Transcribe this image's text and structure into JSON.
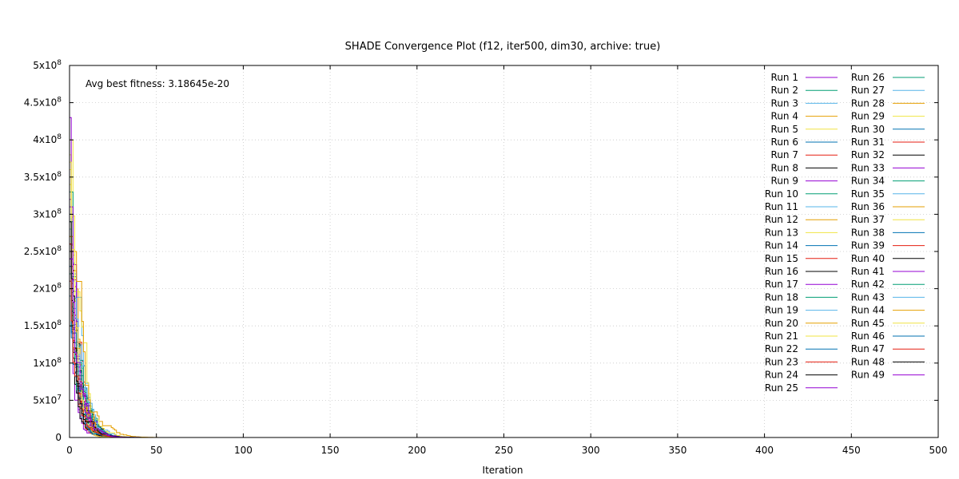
{
  "chart_data": {
    "type": "line",
    "title": "SHADE Convergence Plot (f12, iter500, dim30, archive: true)",
    "xlabel": "Iteration",
    "ylabel": "",
    "annotation": "Avg best fitness: 3.18645e-20",
    "xlim": [
      0,
      500
    ],
    "ylim": [
      0,
      500000000
    ],
    "x_ticks": [
      "0",
      "50",
      "100",
      "150",
      "200",
      "250",
      "300",
      "350",
      "400",
      "450",
      "500"
    ],
    "x_tick_values": [
      0,
      50,
      100,
      150,
      200,
      250,
      300,
      350,
      400,
      450,
      500
    ],
    "y_ticks": [
      {
        "mantissa": "0",
        "exp": ""
      },
      {
        "mantissa": "5x10",
        "exp": "7"
      },
      {
        "mantissa": "1x10",
        "exp": "8"
      },
      {
        "mantissa": "1.5x10",
        "exp": "8"
      },
      {
        "mantissa": "2x10",
        "exp": "8"
      },
      {
        "mantissa": "2.5x10",
        "exp": "8"
      },
      {
        "mantissa": "3x10",
        "exp": "8"
      },
      {
        "mantissa": "3.5x10",
        "exp": "8"
      },
      {
        "mantissa": "4x10",
        "exp": "8"
      },
      {
        "mantissa": "4.5x10",
        "exp": "8"
      },
      {
        "mantissa": "5x10",
        "exp": "8"
      }
    ],
    "y_tick_values": [
      0,
      50000000,
      100000000,
      150000000,
      200000000,
      250000000,
      300000000,
      350000000,
      400000000,
      450000000,
      500000000
    ],
    "grid": true,
    "legend_position": "top-right",
    "palette": [
      "#9400d3",
      "#009e73",
      "#56b4e9",
      "#e69f00",
      "#f0e442",
      "#0072b2",
      "#e51e10",
      "#000000"
    ],
    "series": [
      {
        "name": "Run 1",
        "initial": 320000000,
        "decay": 0.3
      },
      {
        "name": "Run 2",
        "initial": 260000000,
        "decay": 0.28
      },
      {
        "name": "Run 3",
        "initial": 300000000,
        "decay": 0.32
      },
      {
        "name": "Run 4",
        "initial": 280000000,
        "decay": 0.27
      },
      {
        "name": "Run 5",
        "initial": 400000000,
        "decay": 0.35
      },
      {
        "name": "Run 6",
        "initial": 240000000,
        "decay": 0.29
      },
      {
        "name": "Run 7",
        "initial": 250000000,
        "decay": 0.31
      },
      {
        "name": "Run 8",
        "initial": 220000000,
        "decay": 0.26
      },
      {
        "name": "Run 9",
        "initial": 230000000,
        "decay": 0.3
      },
      {
        "name": "Run 10",
        "initial": 330000000,
        "decay": 0.33
      },
      {
        "name": "Run 11",
        "initial": 290000000,
        "decay": 0.28
      },
      {
        "name": "Run 12",
        "initial": 270000000,
        "decay": 0.25
      },
      {
        "name": "Run 13",
        "initial": 380000000,
        "decay": 0.34
      },
      {
        "name": "Run 14",
        "initial": 210000000,
        "decay": 0.27
      },
      {
        "name": "Run 15",
        "initial": 200000000,
        "decay": 0.3
      },
      {
        "name": "Run 16",
        "initial": 260000000,
        "decay": 0.29
      },
      {
        "name": "Run 17",
        "initial": 240000000,
        "decay": 0.31
      },
      {
        "name": "Run 18",
        "initial": 280000000,
        "decay": 0.26
      },
      {
        "name": "Run 19",
        "initial": 310000000,
        "decay": 0.32
      },
      {
        "name": "Run 20",
        "initial": 250000000,
        "decay": 0.24
      },
      {
        "name": "Run 21",
        "initial": 350000000,
        "decay": 0.3
      },
      {
        "name": "Run 22",
        "initial": 190000000,
        "decay": 0.28
      },
      {
        "name": "Run 23",
        "initial": 230000000,
        "decay": 0.33
      },
      {
        "name": "Run 24",
        "initial": 270000000,
        "decay": 0.27
      },
      {
        "name": "Run 25",
        "initial": 430000000,
        "decay": 0.36
      },
      {
        "name": "Run 26",
        "initial": 300000000,
        "decay": 0.29
      },
      {
        "name": "Run 27",
        "initial": 220000000,
        "decay": 0.26
      },
      {
        "name": "Run 28",
        "initial": 260000000,
        "decay": 0.31
      },
      {
        "name": "Run 29",
        "initial": 340000000,
        "decay": 0.28
      },
      {
        "name": "Run 30",
        "initial": 240000000,
        "decay": 0.3
      },
      {
        "name": "Run 31",
        "initial": 210000000,
        "decay": 0.25
      },
      {
        "name": "Run 32",
        "initial": 280000000,
        "decay": 0.32
      },
      {
        "name": "Run 33",
        "initial": 250000000,
        "decay": 0.27
      },
      {
        "name": "Run 34",
        "initial": 290000000,
        "decay": 0.29
      },
      {
        "name": "Run 35",
        "initial": 230000000,
        "decay": 0.33
      },
      {
        "name": "Run 36",
        "initial": 270000000,
        "decay": 0.26
      },
      {
        "name": "Run 37",
        "initial": 360000000,
        "decay": 0.31
      },
      {
        "name": "Run 38",
        "initial": 200000000,
        "decay": 0.28
      },
      {
        "name": "Run 39",
        "initial": 260000000,
        "decay": 0.3
      },
      {
        "name": "Run 40",
        "initial": 240000000,
        "decay": 0.27
      },
      {
        "name": "Run 41",
        "initial": 310000000,
        "decay": 0.32
      },
      {
        "name": "Run 42",
        "initial": 220000000,
        "decay": 0.29
      },
      {
        "name": "Run 43",
        "initial": 280000000,
        "decay": 0.26
      },
      {
        "name": "Run 44",
        "initial": 250000000,
        "decay": 0.31
      },
      {
        "name": "Run 45",
        "initial": 370000000,
        "decay": 0.34
      },
      {
        "name": "Run 46",
        "initial": 230000000,
        "decay": 0.28
      },
      {
        "name": "Run 47",
        "initial": 260000000,
        "decay": 0.3
      },
      {
        "name": "Run 48",
        "initial": 290000000,
        "decay": 0.27
      },
      {
        "name": "Run 49",
        "initial": 240000000,
        "decay": 0.29
      }
    ]
  }
}
